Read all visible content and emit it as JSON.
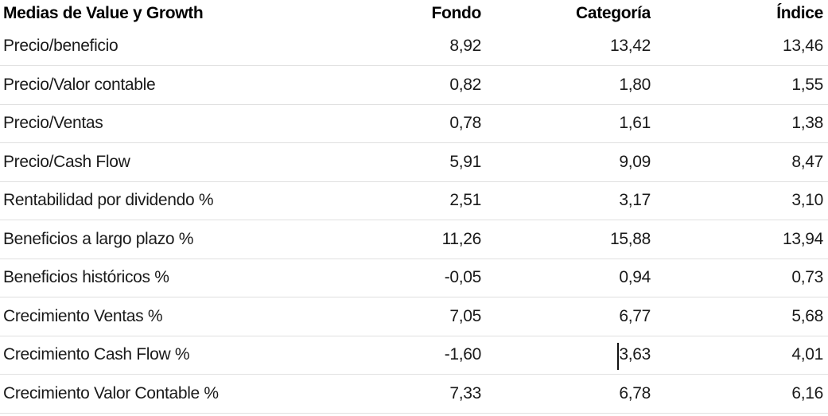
{
  "table": {
    "title": "Medias de Value y Growth",
    "columns": [
      "Fondo",
      "Categoría",
      "Índice"
    ],
    "rows": [
      {
        "label": "Precio/beneficio",
        "fondo": "8,92",
        "categoria": "13,42",
        "indice": "13,46"
      },
      {
        "label": "Precio/Valor contable",
        "fondo": "0,82",
        "categoria": "1,80",
        "indice": "1,55"
      },
      {
        "label": "Precio/Ventas",
        "fondo": "0,78",
        "categoria": "1,61",
        "indice": "1,38"
      },
      {
        "label": "Precio/Cash Flow",
        "fondo": "5,91",
        "categoria": "9,09",
        "indice": "8,47"
      },
      {
        "label": "Rentabilidad por dividendo %",
        "fondo": "2,51",
        "categoria": "3,17",
        "indice": "3,10"
      },
      {
        "label": "Beneficios a largo plazo %",
        "fondo": "11,26",
        "categoria": "15,88",
        "indice": "13,94"
      },
      {
        "label": "Beneficios históricos %",
        "fondo": "-0,05",
        "categoria": "0,94",
        "indice": "0,73"
      },
      {
        "label": "Crecimiento Ventas %",
        "fondo": "7,05",
        "categoria": "6,77",
        "indice": "5,68"
      },
      {
        "label": "Crecimiento Cash Flow %",
        "fondo": "-1,60",
        "categoria": "3,63",
        "indice": "4,01"
      },
      {
        "label": "Crecimiento Valor Contable %",
        "fondo": "7,33",
        "categoria": "6,78",
        "indice": "6,16"
      }
    ]
  },
  "colors": {
    "background": "#ffffff",
    "header_text": "#000000",
    "body_text": "#1a1a1a",
    "separator": "#e0e0e0"
  }
}
